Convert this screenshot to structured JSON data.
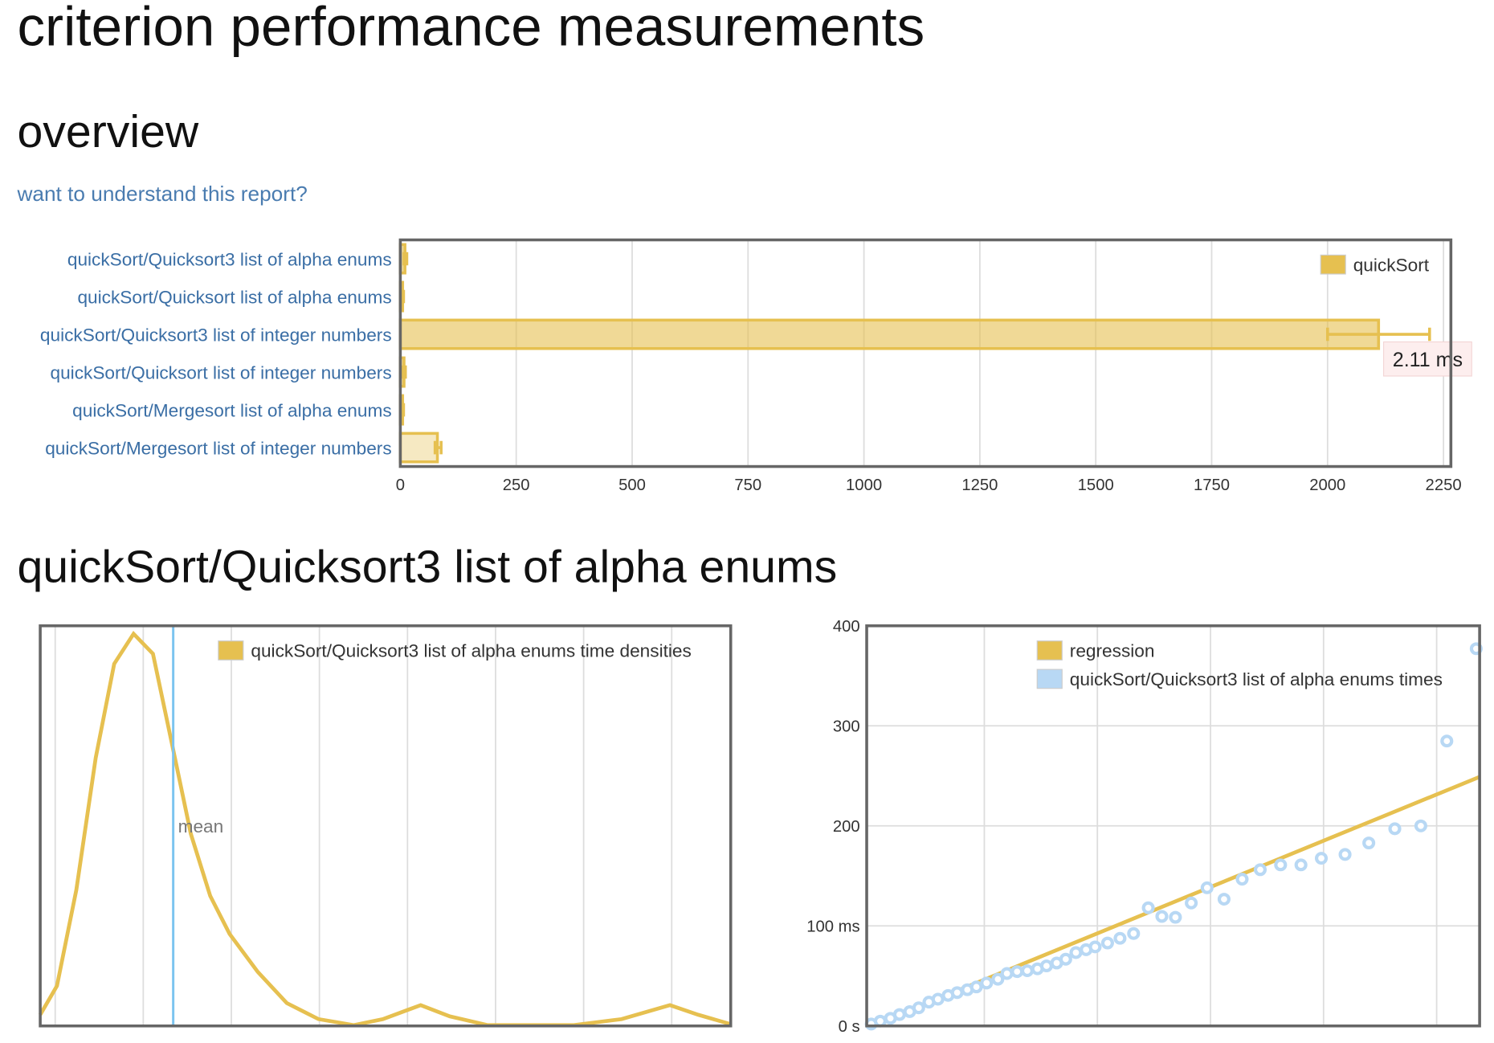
{
  "page": {
    "title": "criterion performance measurements",
    "overview_heading": "overview",
    "help_link": "want to understand this report?",
    "section_heading": "quickSort/Quicksort3 list of alpha enums"
  },
  "chart_data": [
    {
      "type": "bar",
      "orientation": "horizontal",
      "categories": [
        "quickSort/Quicksort3 list of alpha enums",
        "quickSort/Quicksort list of alpha enums",
        "quickSort/Quicksort3 list of integer numbers",
        "quickSort/Quicksort list of integer numbers",
        "quickSort/Mergesort list of alpha enums",
        "quickSort/Mergesort list of integer numbers"
      ],
      "series": [
        {
          "name": "quickSort",
          "color": "#e6c050",
          "values": [
            10,
            5,
            2110,
            8,
            5,
            80
          ],
          "ci_low": [
            8,
            4,
            2000,
            6,
            4,
            75
          ],
          "ci_high": [
            14,
            7,
            2220,
            11,
            7,
            88
          ],
          "value_labels": [
            null,
            null,
            "2.11 ms",
            null,
            null,
            null
          ]
        }
      ],
      "xlim": [
        0,
        2266
      ],
      "xticks": [
        0,
        250,
        500,
        750,
        1000,
        1250,
        1500,
        1750,
        2000,
        2250
      ],
      "grid": true,
      "legend": "top-right"
    },
    {
      "type": "line",
      "x": [
        -1.7,
        0.2,
        2.4,
        4.6,
        6.7,
        8.9,
        11.1,
        13.4,
        15.4,
        17.6,
        19.8,
        23.0,
        26.3,
        29.9,
        33.9,
        37.2,
        41.5,
        44.8,
        49.1,
        58.9,
        64.3,
        69.8,
        73.0,
        76.6
      ],
      "series": [
        {
          "name": "quickSort/Quicksort3 list of alpha enums time densities",
          "color": "#e6c050",
          "values": [
            2.8,
            10,
            34,
            67,
            90.5,
            98,
            93,
            69,
            48,
            32.5,
            23,
            13.5,
            5.7,
            1.7,
            0.2,
            1.7,
            5.2,
            2.4,
            0.2,
            0.2,
            1.7,
            5.2,
            2.8,
            0.5
          ]
        }
      ],
      "xlim": [
        -1.7,
        76.7
      ],
      "ylim": [
        0,
        100
      ],
      "xticks": [
        0,
        10,
        20,
        30,
        40,
        50,
        60,
        70
      ],
      "grid": true,
      "annotations": [
        {
          "x": 13.4,
          "label": "mean",
          "color": "#7cc4f0"
        }
      ],
      "legend": "top-right"
    },
    {
      "type": "scatter",
      "series": [
        {
          "name": "regression",
          "type": "line",
          "color": "#e6c050",
          "x": [
            0,
            5.38
          ],
          "values": [
            0,
            249
          ]
        },
        {
          "name": "quickSort/Quicksort3 list of alpha enums times",
          "color": "#b8d8f4",
          "x": [
            0,
            0.08,
            0.17,
            0.25,
            0.34,
            0.42,
            0.51,
            0.59,
            0.68,
            0.76,
            0.85,
            0.93,
            1.02,
            1.12,
            1.2,
            1.29,
            1.38,
            1.47,
            1.55,
            1.64,
            1.72,
            1.81,
            1.9,
            1.98,
            2.09,
            2.2,
            2.32,
            2.45,
            2.57,
            2.69,
            2.83,
            2.97,
            3.12,
            3.28,
            3.44,
            3.62,
            3.8,
            3.98,
            4.19,
            4.4,
            4.63,
            4.86,
            5.09,
            5.35
          ],
          "values": [
            1.9,
            4.8,
            7.6,
            11.4,
            14.3,
            18.1,
            23.8,
            26.7,
            30.5,
            33.3,
            36.2,
            39.0,
            42.9,
            46.7,
            52.4,
            54.3,
            55.2,
            57.1,
            60.0,
            62.9,
            66.7,
            73.3,
            76.2,
            79.0,
            82.9,
            87.6,
            92.4,
            118.1,
            109.5,
            108.6,
            122.9,
            138.1,
            126.7,
            146.7,
            156.2,
            161.0,
            161.0,
            167.6,
            171.4,
            182.9,
            197.1,
            200.0,
            284.8,
            377.1
          ]
        }
      ],
      "xlim": [
        -0.04,
        5.38
      ],
      "ylim": [
        0,
        400
      ],
      "xticks": [
        1,
        2,
        3,
        4,
        5
      ],
      "yticks": [
        {
          "value": 0,
          "label": "0 s"
        },
        {
          "value": 100,
          "label": "100 ms"
        },
        200,
        300,
        400
      ],
      "grid": true,
      "legend": "top-left"
    }
  ]
}
